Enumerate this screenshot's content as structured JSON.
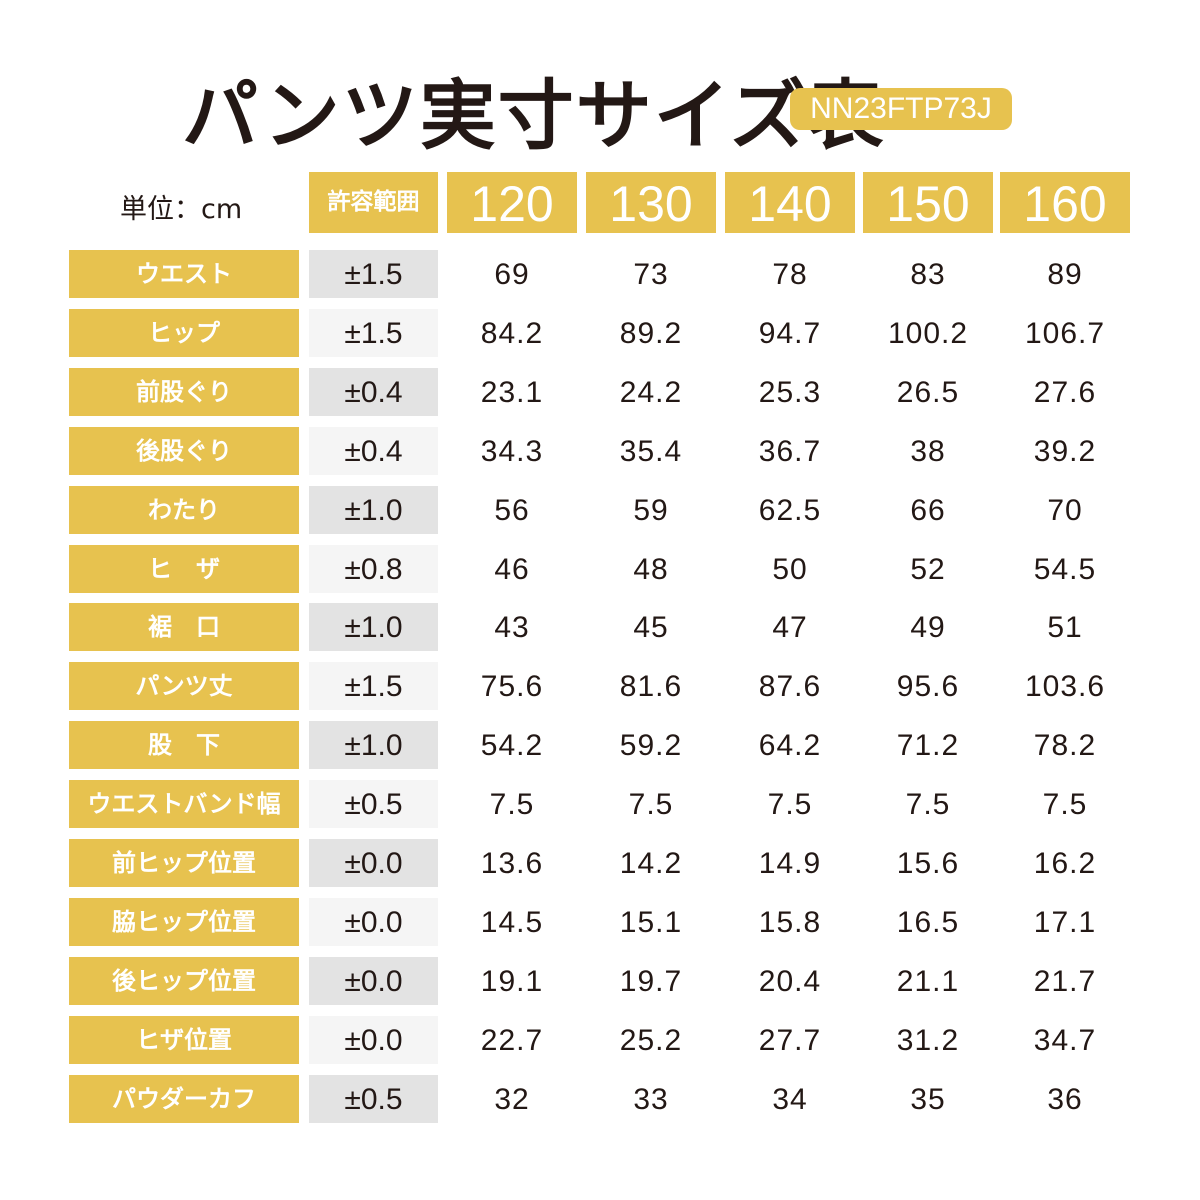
{
  "title": "パンツ実寸サイズ表",
  "model_code": "NN23FTP73J",
  "unit_label": "単位：cm",
  "tolerance_header": "許容範囲",
  "sizes": [
    "120",
    "130",
    "140",
    "150",
    "160"
  ],
  "accent_color": "#e7c24f",
  "rows": [
    {
      "label": "ウエスト",
      "tolerance": "±1.5",
      "values": [
        "69",
        "73",
        "78",
        "83",
        "89"
      ]
    },
    {
      "label": "ヒップ",
      "tolerance": "±1.5",
      "values": [
        "84.2",
        "89.2",
        "94.7",
        "100.2",
        "106.7"
      ]
    },
    {
      "label": "前股ぐり",
      "tolerance": "±0.4",
      "values": [
        "23.1",
        "24.2",
        "25.3",
        "26.5",
        "27.6"
      ]
    },
    {
      "label": "後股ぐり",
      "tolerance": "±0.4",
      "values": [
        "34.3",
        "35.4",
        "36.7",
        "38",
        "39.2"
      ]
    },
    {
      "label": "わたり",
      "tolerance": "±1.0",
      "values": [
        "56",
        "59",
        "62.5",
        "66",
        "70"
      ]
    },
    {
      "label": "ヒ　ザ",
      "tolerance": "±0.8",
      "values": [
        "46",
        "48",
        "50",
        "52",
        "54.5"
      ]
    },
    {
      "label": "裾　口",
      "tolerance": "±1.0",
      "values": [
        "43",
        "45",
        "47",
        "49",
        "51"
      ]
    },
    {
      "label": "パンツ丈",
      "tolerance": "±1.5",
      "values": [
        "75.6",
        "81.6",
        "87.6",
        "95.6",
        "103.6"
      ]
    },
    {
      "label": "股　下",
      "tolerance": "±1.0",
      "values": [
        "54.2",
        "59.2",
        "64.2",
        "71.2",
        "78.2"
      ]
    },
    {
      "label": "ウエストバンド幅",
      "tolerance": "±0.5",
      "values": [
        "7.5",
        "7.5",
        "7.5",
        "7.5",
        "7.5"
      ]
    },
    {
      "label": "前ヒップ位置",
      "tolerance": "±0.0",
      "values": [
        "13.6",
        "14.2",
        "14.9",
        "15.6",
        "16.2"
      ]
    },
    {
      "label": "脇ヒップ位置",
      "tolerance": "±0.0",
      "values": [
        "14.5",
        "15.1",
        "15.8",
        "16.5",
        "17.1"
      ]
    },
    {
      "label": "後ヒップ位置",
      "tolerance": "±0.0",
      "values": [
        "19.1",
        "19.7",
        "20.4",
        "21.1",
        "21.7"
      ]
    },
    {
      "label": "ヒザ位置",
      "tolerance": "±0.0",
      "values": [
        "22.7",
        "25.2",
        "27.7",
        "31.2",
        "34.7"
      ]
    },
    {
      "label": "パウダーカフ",
      "tolerance": "±0.5",
      "values": [
        "32",
        "33",
        "34",
        "35",
        "36"
      ]
    }
  ]
}
